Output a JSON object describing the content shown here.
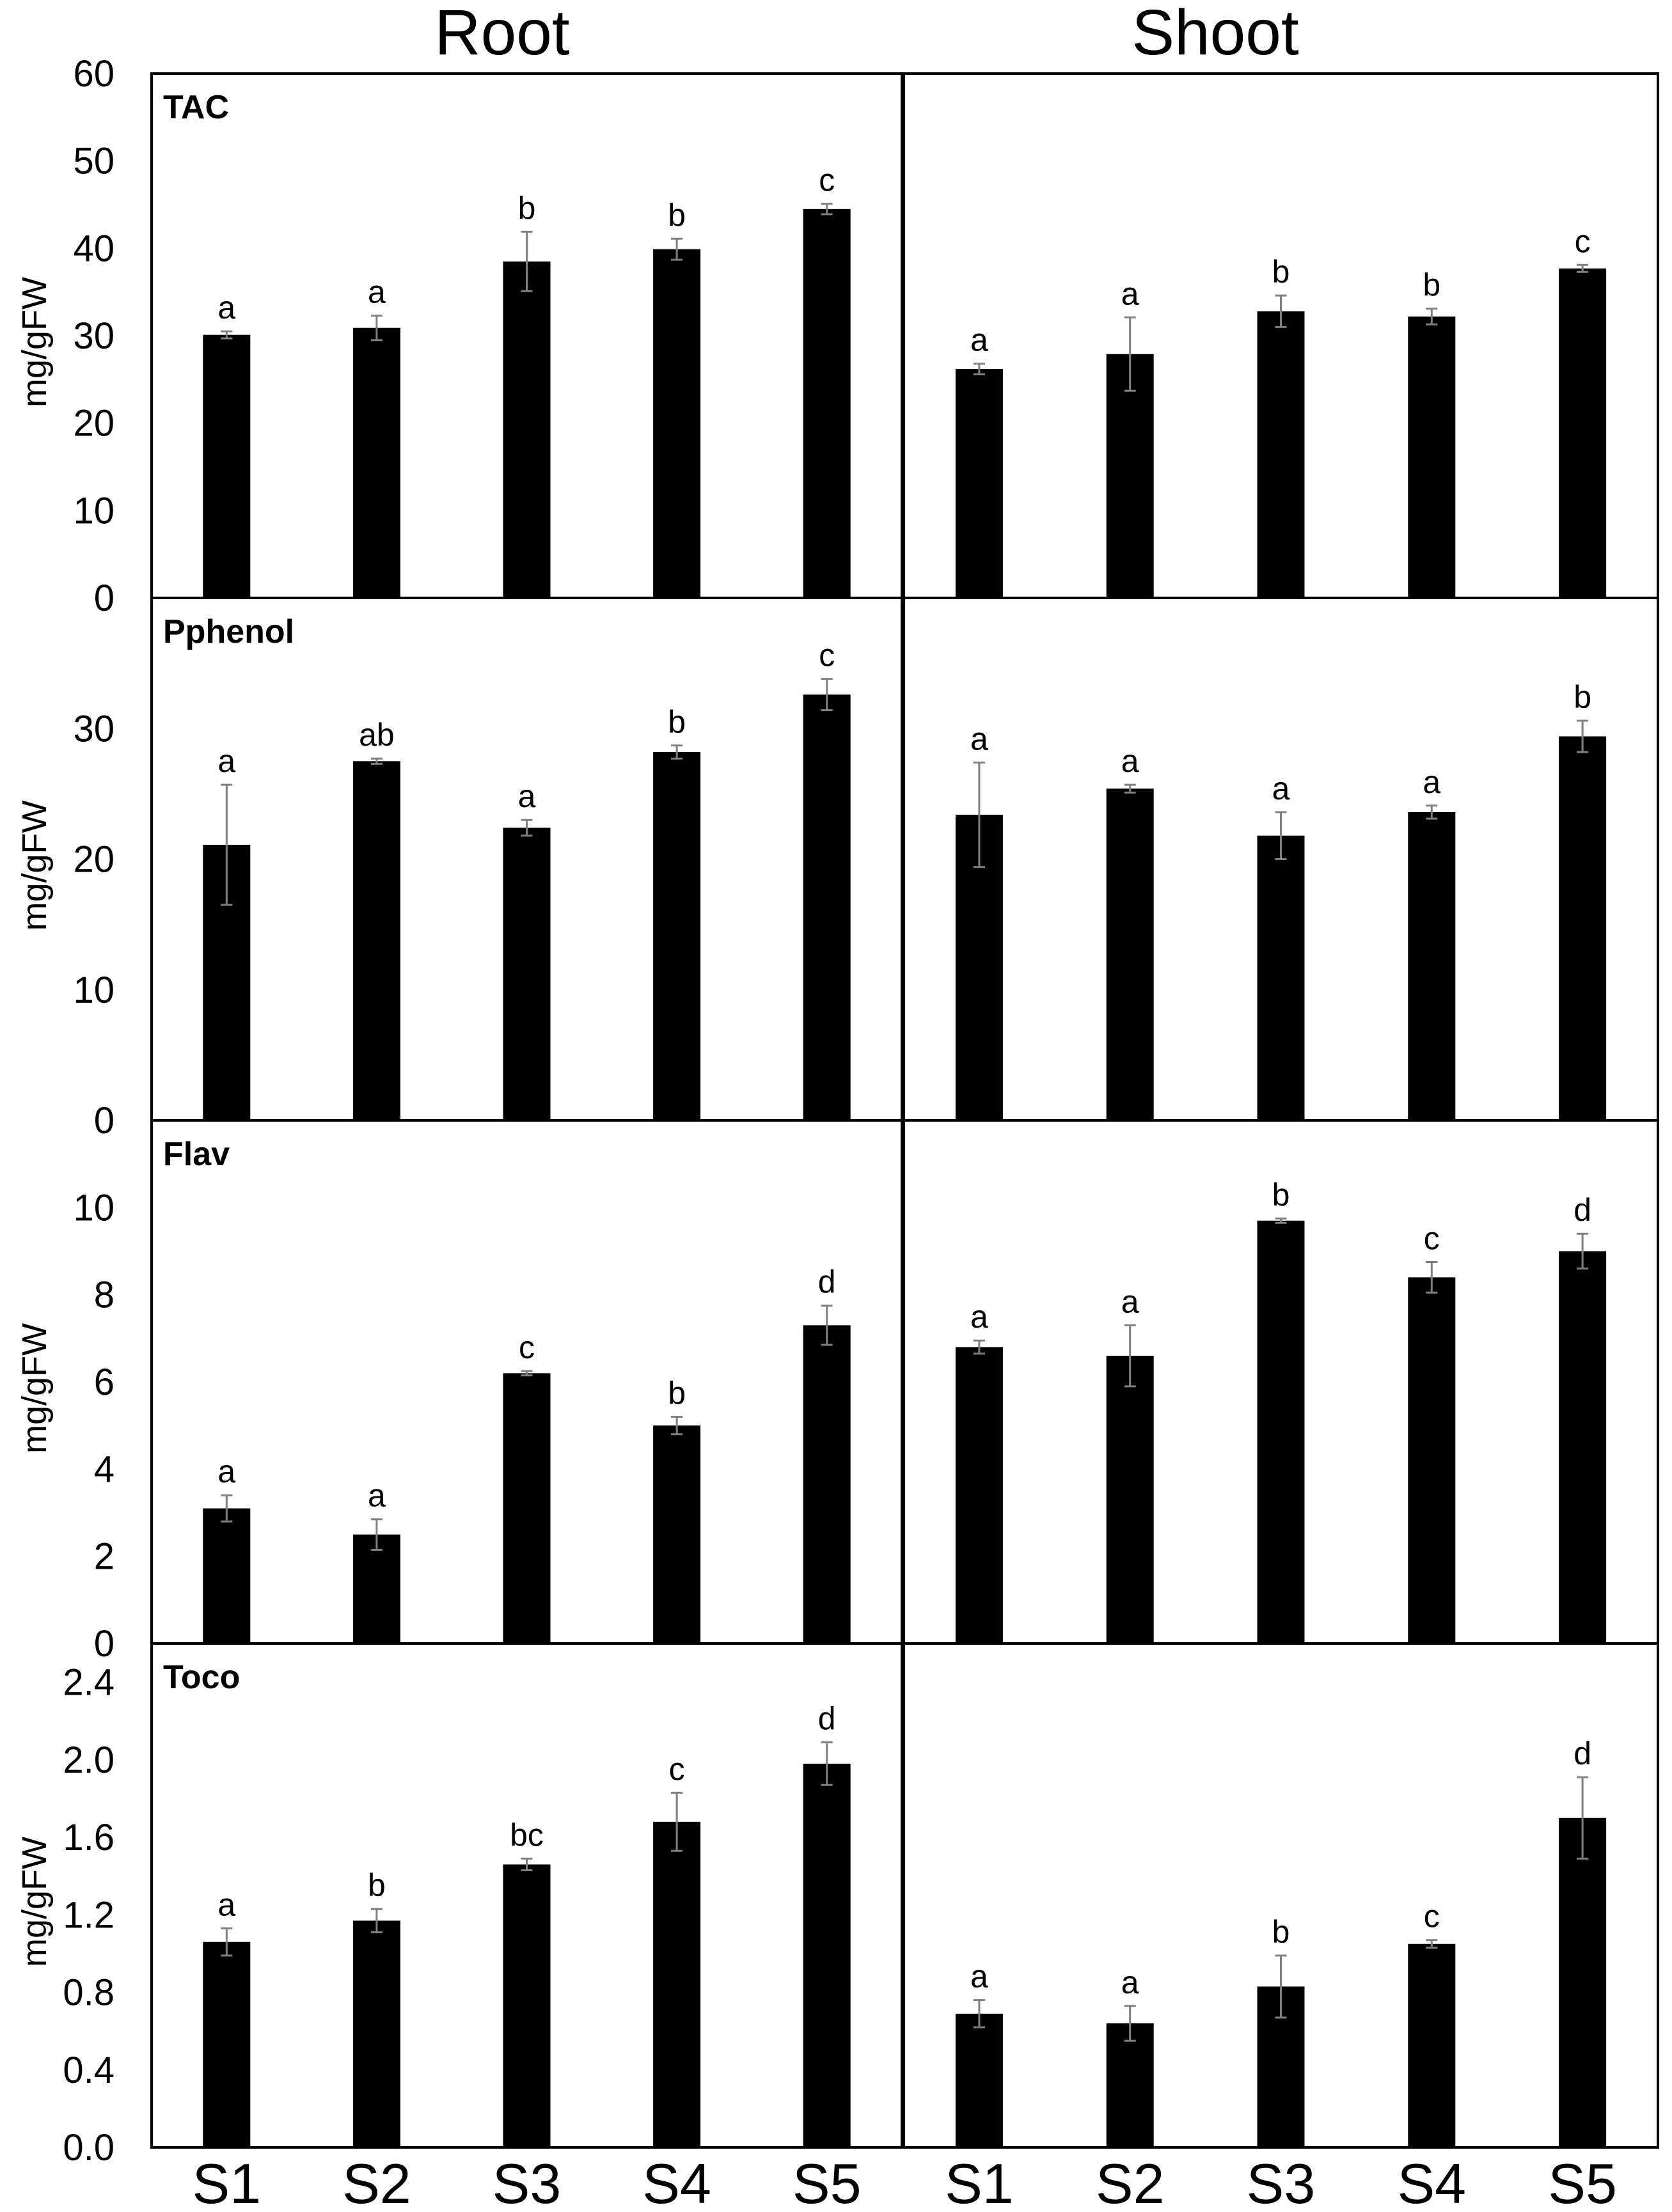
{
  "column_titles": [
    "Root",
    "Shoot"
  ],
  "x_ticks": [
    "S1",
    "S2",
    "S3",
    "S4",
    "S5"
  ],
  "colors": {
    "bar": "#000000",
    "error_bar": "#808080",
    "frame": "#000000",
    "text": "#000000"
  },
  "chart_data": [
    {
      "type": "bar",
      "panel": "TAC",
      "column": "Root",
      "label": "TAC",
      "ylabel": "mg/gFW",
      "ylim": [
        0,
        60
      ],
      "yticks": [
        "0",
        "10",
        "20",
        "30",
        "40",
        "50",
        "60"
      ],
      "categories": [
        "S1",
        "S2",
        "S3",
        "S4",
        "S5"
      ],
      "values": [
        30.1,
        30.9,
        38.5,
        39.9,
        44.5
      ],
      "errors": [
        0.4,
        1.4,
        3.4,
        1.2,
        0.6
      ],
      "letters": [
        "a",
        "a",
        "b",
        "b",
        "c"
      ]
    },
    {
      "type": "bar",
      "panel": "TAC",
      "column": "Shoot",
      "label": "",
      "ylabel": "",
      "ylim": [
        0,
        60
      ],
      "yticks": [],
      "categories": [
        "S1",
        "S2",
        "S3",
        "S4",
        "S5"
      ],
      "values": [
        26.2,
        27.9,
        32.8,
        32.2,
        37.7
      ],
      "errors": [
        0.6,
        4.2,
        1.8,
        0.9,
        0.4
      ],
      "letters": [
        "a",
        "a",
        "b",
        "b",
        "c"
      ]
    },
    {
      "type": "bar",
      "panel": "Pphenol",
      "column": "Root",
      "label": "Pphenol",
      "ylabel": "mg/gFW",
      "ylim": [
        0,
        40
      ],
      "yticks": [
        "0",
        "10",
        "20",
        "30"
      ],
      "categories": [
        "S1",
        "S2",
        "S3",
        "S4",
        "S5"
      ],
      "values": [
        21.1,
        27.5,
        22.4,
        28.2,
        32.6
      ],
      "errors": [
        4.6,
        0.2,
        0.6,
        0.5,
        1.2
      ],
      "letters": [
        "a",
        "ab",
        "a",
        "b",
        "c"
      ]
    },
    {
      "type": "bar",
      "panel": "Pphenol",
      "column": "Shoot",
      "label": "",
      "ylabel": "",
      "ylim": [
        0,
        40
      ],
      "yticks": [],
      "categories": [
        "S1",
        "S2",
        "S3",
        "S4",
        "S5"
      ],
      "values": [
        23.4,
        25.4,
        21.8,
        23.6,
        29.4
      ],
      "errors": [
        4.0,
        0.3,
        1.8,
        0.5,
        1.2
      ],
      "letters": [
        "a",
        "a",
        "a",
        "a",
        "b"
      ]
    },
    {
      "type": "bar",
      "panel": "Flav",
      "column": "Root",
      "label": "Flav",
      "ylabel": "mg/gFW",
      "ylim": [
        0,
        12
      ],
      "yticks": [
        "0",
        "2",
        "4",
        "6",
        "8",
        "10"
      ],
      "categories": [
        "S1",
        "S2",
        "S3",
        "S4",
        "S5"
      ],
      "values": [
        3.1,
        2.5,
        6.2,
        5.0,
        7.3
      ],
      "errors": [
        0.3,
        0.35,
        0.05,
        0.2,
        0.45
      ],
      "letters": [
        "a",
        "a",
        "c",
        "b",
        "d"
      ]
    },
    {
      "type": "bar",
      "panel": "Flav",
      "column": "Shoot",
      "label": "",
      "ylabel": "",
      "ylim": [
        0,
        12
      ],
      "yticks": [],
      "categories": [
        "S1",
        "S2",
        "S3",
        "S4",
        "S5"
      ],
      "values": [
        6.8,
        6.6,
        9.7,
        8.4,
        9.0
      ],
      "errors": [
        0.15,
        0.7,
        0.05,
        0.35,
        0.4
      ],
      "letters": [
        "a",
        "a",
        "b",
        "c",
        "d"
      ]
    },
    {
      "type": "bar",
      "panel": "Toco",
      "column": "Root",
      "label": "Toco",
      "ylabel": "mg/gFW",
      "ylim": [
        0,
        2.6
      ],
      "yticks": [
        "0.0",
        "0.4",
        "0.8",
        "1.2",
        "1.6",
        "2.0",
        "2.4"
      ],
      "categories": [
        "S1",
        "S2",
        "S3",
        "S4",
        "S5"
      ],
      "values": [
        1.06,
        1.17,
        1.46,
        1.68,
        1.98
      ],
      "errors": [
        0.07,
        0.06,
        0.03,
        0.15,
        0.11
      ],
      "letters": [
        "a",
        "b",
        "bc",
        "c",
        "d"
      ]
    },
    {
      "type": "bar",
      "panel": "Toco",
      "column": "Shoot",
      "label": "",
      "ylabel": "",
      "ylim": [
        0,
        2.6
      ],
      "yticks": [],
      "categories": [
        "S1",
        "S2",
        "S3",
        "S4",
        "S5"
      ],
      "values": [
        0.69,
        0.64,
        0.83,
        1.05,
        1.7
      ],
      "errors": [
        0.07,
        0.09,
        0.16,
        0.02,
        0.21
      ],
      "letters": [
        "a",
        "a",
        "b",
        "c",
        "d"
      ]
    }
  ]
}
